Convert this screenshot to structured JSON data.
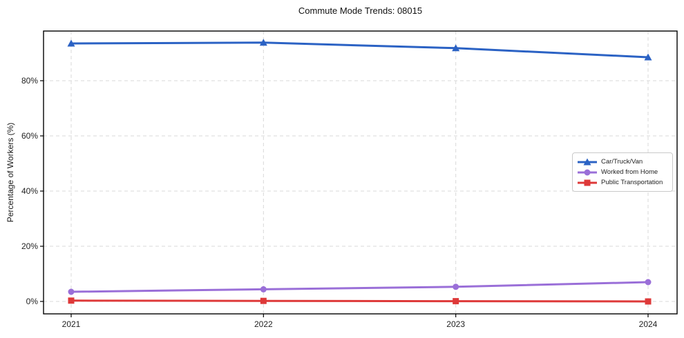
{
  "chart_data": {
    "type": "line",
    "title": "Commute Mode Trends: 08015",
    "xlabel": "",
    "ylabel": "Percentage of Workers (%)",
    "x": [
      2021,
      2022,
      2023,
      2024
    ],
    "xtick_labels": [
      "2021",
      "2022",
      "2023",
      "2024"
    ],
    "ytick_values": [
      0,
      20,
      40,
      60,
      80
    ],
    "ytick_labels": [
      "0%",
      "20%",
      "40%",
      "60%",
      "80%"
    ],
    "ylim": [
      -4.5,
      98
    ],
    "grid": true,
    "grid_style": "dashed",
    "legend_position": "center-right",
    "series": [
      {
        "name": "Car/Truck/Van",
        "marker": "triangle",
        "color": "#2b62c4",
        "values": [
          93.5,
          93.8,
          91.8,
          88.5
        ]
      },
      {
        "name": "Worked from Home",
        "marker": "circle",
        "color": "#9a6fd8",
        "values": [
          3.5,
          4.4,
          5.3,
          7.0
        ]
      },
      {
        "name": "Public Transportation",
        "marker": "square",
        "color": "#de3939",
        "values": [
          0.3,
          0.2,
          0.1,
          0.0
        ]
      }
    ],
    "colors": {
      "grid": "#d9d9d9",
      "spine": "#000000",
      "tick_text": "#1f1f1f",
      "background": "#ffffff"
    }
  }
}
